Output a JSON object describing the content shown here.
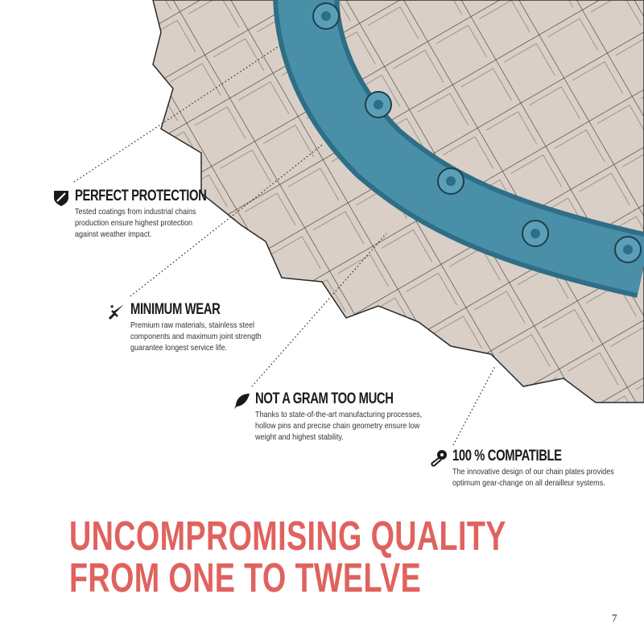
{
  "features": [
    {
      "icon": "shield-icon",
      "title": "PERFECT PROTECTION",
      "lines": [
        "Tested coatings from industrial chains",
        "production ensure highest protection",
        "against weather impact."
      ]
    },
    {
      "icon": "sword-icon",
      "title": "MINIMUM WEAR",
      "lines": [
        "Premium raw materials, stainless steel",
        "components and maximum joint strength",
        "guarantee longest service life."
      ]
    },
    {
      "icon": "feather-icon",
      "title": "NOT A GRAM TOO MUCH",
      "lines": [
        "Thanks to state-of-the-art manufacturing processes,",
        "hollow pins and precise chain geometry ensure low",
        "weight and highest stability."
      ]
    },
    {
      "icon": "chain-tool-icon",
      "title": "100 % COMPATIBLE",
      "lines": [
        "The innovative design of our chain plates provides",
        "optimum gear-change on all derailleur systems."
      ]
    }
  ],
  "headline": {
    "line1": "UNCOMPROMISING QUALITY",
    "line2": "FROM ONE TO TWELVE"
  },
  "page_number": "7",
  "colors": {
    "headline": "#e0625e",
    "chain": "#4a8fa8",
    "gear": "#d9cfc6"
  }
}
